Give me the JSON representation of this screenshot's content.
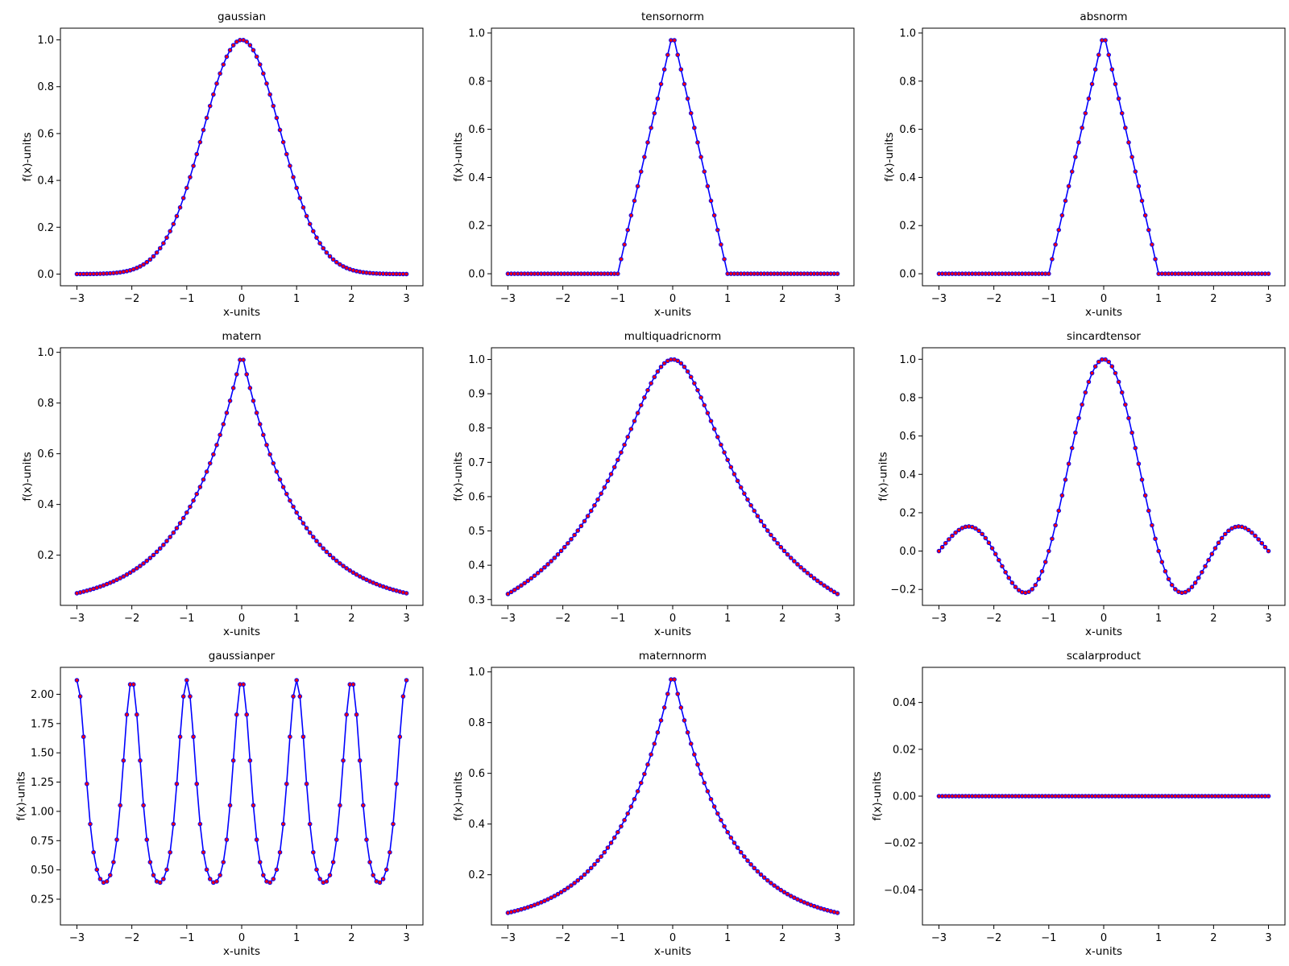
{
  "figure": {
    "background": "#ffffff"
  },
  "style": {
    "line_color": "#0000ff",
    "marker_face": "#ff0000",
    "marker_edge": "#0000ff",
    "samples": 100
  },
  "chart_data": [
    {
      "type": "line",
      "title": "gaussian",
      "xlabel": "x-units",
      "ylabel": "f(x)-units",
      "func": "gaussian",
      "x_range": [
        -3,
        3
      ],
      "xlim": [
        -3.3,
        3.3
      ],
      "ylim": [
        -0.05,
        1.05
      ],
      "xticks": [
        -3,
        -2,
        -1,
        0,
        1,
        2,
        3
      ],
      "xtick_labels": [
        "−3",
        "−2",
        "−1",
        "0",
        "1",
        "2",
        "3"
      ],
      "yticks": [
        0,
        0.2,
        0.4,
        0.6,
        0.8,
        1.0
      ],
      "ytick_labels": [
        "0.0",
        "0.2",
        "0.4",
        "0.6",
        "0.8",
        "1.0"
      ]
    },
    {
      "type": "line",
      "title": "tensornorm",
      "xlabel": "x-units",
      "ylabel": "f(x)-units",
      "func": "triangle",
      "x_range": [
        -3,
        3
      ],
      "xlim": [
        -3.3,
        3.3
      ],
      "ylim": [
        -0.05,
        1.02
      ],
      "xticks": [
        -3,
        -2,
        -1,
        0,
        1,
        2,
        3
      ],
      "xtick_labels": [
        "−3",
        "−2",
        "−1",
        "0",
        "1",
        "2",
        "3"
      ],
      "yticks": [
        0,
        0.2,
        0.4,
        0.6,
        0.8,
        1.0
      ],
      "ytick_labels": [
        "0.0",
        "0.2",
        "0.4",
        "0.6",
        "0.8",
        "1.0"
      ]
    },
    {
      "type": "line",
      "title": "absnorm",
      "xlabel": "x-units",
      "ylabel": "f(x)-units",
      "func": "triangle",
      "x_range": [
        -3,
        3
      ],
      "xlim": [
        -3.3,
        3.3
      ],
      "ylim": [
        -0.05,
        1.02
      ],
      "xticks": [
        -3,
        -2,
        -1,
        0,
        1,
        2,
        3
      ],
      "xtick_labels": [
        "−3",
        "−2",
        "−1",
        "0",
        "1",
        "2",
        "3"
      ],
      "yticks": [
        0,
        0.2,
        0.4,
        0.6,
        0.8,
        1.0
      ],
      "ytick_labels": [
        "0.0",
        "0.2",
        "0.4",
        "0.6",
        "0.8",
        "1.0"
      ]
    },
    {
      "type": "line",
      "title": "matern",
      "xlabel": "x-units",
      "ylabel": "f(x)-units",
      "func": "matern",
      "x_range": [
        -3,
        3
      ],
      "xlim": [
        -3.3,
        3.3
      ],
      "ylim": [
        0.002,
        1.018
      ],
      "xticks": [
        -3,
        -2,
        -1,
        0,
        1,
        2,
        3
      ],
      "xtick_labels": [
        "−3",
        "−2",
        "−1",
        "0",
        "1",
        "2",
        "3"
      ],
      "yticks": [
        0.2,
        0.4,
        0.6,
        0.8,
        1.0
      ],
      "ytick_labels": [
        "0.2",
        "0.4",
        "0.6",
        "0.8",
        "1.0"
      ]
    },
    {
      "type": "line",
      "title": "multiquadricnorm",
      "xlabel": "x-units",
      "ylabel": "f(x)-units",
      "func": "multiquadric",
      "x_range": [
        -3,
        3
      ],
      "xlim": [
        -3.3,
        3.3
      ],
      "ylim": [
        0.283,
        1.034
      ],
      "xticks": [
        -3,
        -2,
        -1,
        0,
        1,
        2,
        3
      ],
      "xtick_labels": [
        "−3",
        "−2",
        "−1",
        "0",
        "1",
        "2",
        "3"
      ],
      "yticks": [
        0.3,
        0.4,
        0.5,
        0.6,
        0.7,
        0.8,
        0.9,
        1.0
      ],
      "ytick_labels": [
        "0.3",
        "0.4",
        "0.5",
        "0.6",
        "0.7",
        "0.8",
        "0.9",
        "1.0"
      ]
    },
    {
      "type": "line",
      "title": "sincardtensor",
      "xlabel": "x-units",
      "ylabel": "f(x)-units",
      "func": "sinc",
      "x_range": [
        -3,
        3
      ],
      "xlim": [
        -3.3,
        3.3
      ],
      "ylim": [
        -0.283,
        1.06
      ],
      "xticks": [
        -3,
        -2,
        -1,
        0,
        1,
        2,
        3
      ],
      "xtick_labels": [
        "−3",
        "−2",
        "−1",
        "0",
        "1",
        "2",
        "3"
      ],
      "yticks": [
        -0.2,
        0,
        0.2,
        0.4,
        0.6,
        0.8,
        1.0
      ],
      "ytick_labels": [
        "−0.2",
        "0.0",
        "0.2",
        "0.4",
        "0.6",
        "0.8",
        "1.0"
      ]
    },
    {
      "type": "line",
      "title": "gaussianper",
      "xlabel": "x-units",
      "ylabel": "f(x)-units",
      "func": "periodic",
      "x_range": [
        -3,
        3
      ],
      "xlim": [
        -3.3,
        3.3
      ],
      "ylim": [
        0.03,
        2.23
      ],
      "xticks": [
        -3,
        -2,
        -1,
        0,
        1,
        2,
        3
      ],
      "xtick_labels": [
        "−3",
        "−2",
        "−1",
        "0",
        "1",
        "2",
        "3"
      ],
      "yticks": [
        0.25,
        0.5,
        0.75,
        1.0,
        1.25,
        1.5,
        1.75,
        2.0
      ],
      "ytick_labels": [
        "0.25",
        "0.50",
        "0.75",
        "1.00",
        "1.25",
        "1.50",
        "1.75",
        "2.00"
      ]
    },
    {
      "type": "line",
      "title": "maternnorm",
      "xlabel": "x-units",
      "ylabel": "f(x)-units",
      "func": "matern",
      "x_range": [
        -3,
        3
      ],
      "xlim": [
        -3.3,
        3.3
      ],
      "ylim": [
        0.002,
        1.018
      ],
      "xticks": [
        -3,
        -2,
        -1,
        0,
        1,
        2,
        3
      ],
      "xtick_labels": [
        "−3",
        "−2",
        "−1",
        "0",
        "1",
        "2",
        "3"
      ],
      "yticks": [
        0.2,
        0.4,
        0.6,
        0.8,
        1.0
      ],
      "ytick_labels": [
        "0.2",
        "0.4",
        "0.6",
        "0.8",
        "1.0"
      ]
    },
    {
      "type": "line",
      "title": "scalarproduct",
      "xlabel": "x-units",
      "ylabel": "f(x)-units",
      "func": "zero",
      "x_range": [
        -3,
        3
      ],
      "xlim": [
        -3.3,
        3.3
      ],
      "ylim": [
        -0.055,
        0.055
      ],
      "xticks": [
        -3,
        -2,
        -1,
        0,
        1,
        2,
        3
      ],
      "xtick_labels": [
        "−3",
        "−2",
        "−1",
        "0",
        "1",
        "2",
        "3"
      ],
      "yticks": [
        -0.04,
        -0.02,
        0,
        0.02,
        0.04
      ],
      "ytick_labels": [
        "−0.04",
        "−0.02",
        "0.00",
        "0.02",
        "0.04"
      ]
    }
  ]
}
